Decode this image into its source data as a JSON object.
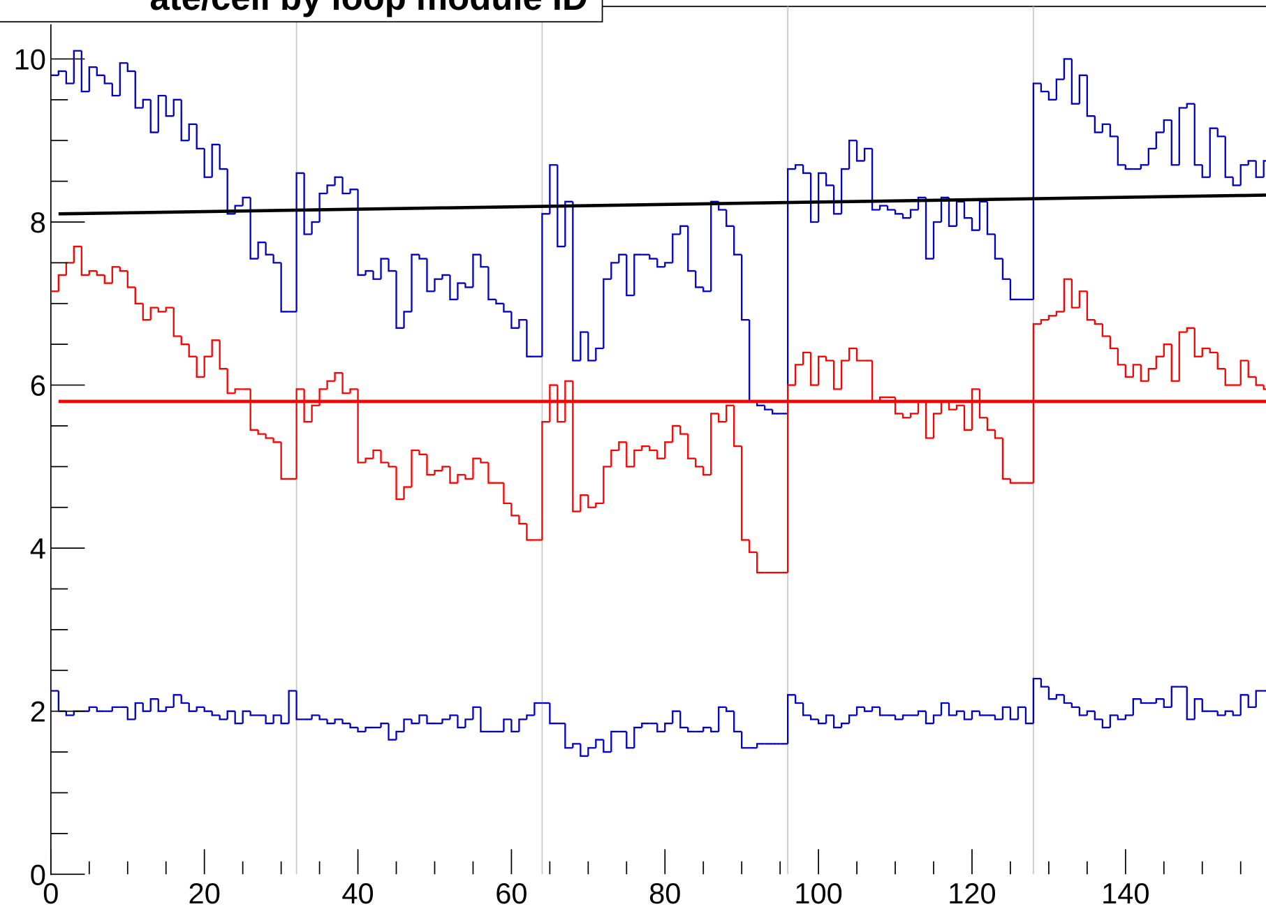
{
  "chart_data": {
    "type": "histogram",
    "title": "ate/cell by loop module ID",
    "xlim": [
      0,
      158.3
    ],
    "ylim": [
      0,
      10.2
    ],
    "xticks": [
      0,
      20,
      40,
      60,
      80,
      100,
      120,
      140
    ],
    "yticks": [
      0,
      2,
      4,
      6,
      8,
      10
    ],
    "xminorticks": [
      5,
      10,
      15,
      25,
      30,
      35,
      45,
      50,
      55,
      65,
      70,
      75,
      85,
      90,
      95,
      105,
      110,
      115,
      125,
      130,
      135,
      145,
      150,
      155
    ],
    "yminorticks": [
      0.5,
      1,
      1.5,
      2.5,
      3,
      3.5,
      4.5,
      5,
      5.5,
      6.5,
      7,
      7.5,
      8.5,
      9,
      9.5
    ],
    "vlines": [
      32,
      64,
      96,
      128
    ],
    "bins": [
      0,
      1,
      2,
      3,
      4,
      5,
      6,
      7,
      8,
      9,
      10,
      11,
      12,
      13,
      14,
      15,
      16,
      17,
      18,
      19,
      20,
      21,
      22,
      23,
      24,
      25,
      26,
      27,
      28,
      29,
      30,
      31,
      32,
      33,
      34,
      35,
      36,
      37,
      38,
      39,
      40,
      41,
      42,
      43,
      44,
      45,
      46,
      47,
      48,
      49,
      50,
      51,
      52,
      53,
      54,
      55,
      56,
      57,
      58,
      59,
      60,
      61,
      62,
      63,
      64,
      65,
      66,
      67,
      68,
      69,
      70,
      71,
      72,
      73,
      74,
      75,
      76,
      77,
      78,
      79,
      80,
      81,
      82,
      83,
      84,
      85,
      86,
      87,
      88,
      89,
      90,
      91,
      92,
      93,
      94,
      95,
      96,
      97,
      98,
      99,
      100,
      101,
      102,
      103,
      104,
      105,
      106,
      107,
      108,
      109,
      110,
      111,
      112,
      113,
      114,
      115,
      116,
      117,
      118,
      119,
      120,
      121,
      122,
      123,
      124,
      125,
      126,
      127,
      128,
      129,
      130,
      131,
      132,
      133,
      134,
      135,
      136,
      137,
      138,
      139,
      140,
      141,
      142,
      143,
      144,
      145,
      146,
      147,
      148,
      149,
      150,
      151,
      152,
      153,
      154,
      155,
      156,
      157,
      158,
      159,
      160
    ],
    "series": [
      {
        "color": "#0000c8",
        "values": [
          9.8,
          9.85,
          9.7,
          10.1,
          9.6,
          9.9,
          9.8,
          9.7,
          9.55,
          9.95,
          9.85,
          9.4,
          9.5,
          9.1,
          9.55,
          9.3,
          9.5,
          9.0,
          9.2,
          8.9,
          8.55,
          8.95,
          8.65,
          8.1,
          8.2,
          8.3,
          7.55,
          7.75,
          7.6,
          7.5,
          6.9,
          6.9,
          8.6,
          7.85,
          8.0,
          8.35,
          8.45,
          8.55,
          8.35,
          8.4,
          7.35,
          7.4,
          7.3,
          7.55,
          7.4,
          6.7,
          6.9,
          7.6,
          7.55,
          7.15,
          7.3,
          7.35,
          7.05,
          7.25,
          7.2,
          7.6,
          7.45,
          7.05,
          7.0,
          6.9,
          6.7,
          6.8,
          6.35,
          6.35,
          8.1,
          8.7,
          7.7,
          8.25,
          6.3,
          6.65,
          6.3,
          6.45,
          7.3,
          7.5,
          7.6,
          7.1,
          7.6,
          7.6,
          7.55,
          7.45,
          7.5,
          7.85,
          7.95,
          7.4,
          7.2,
          7.15,
          8.25,
          8.15,
          7.95,
          7.6,
          6.8,
          5.8,
          5.75,
          5.7,
          5.65,
          5.65,
          8.65,
          8.7,
          8.6,
          8.0,
          8.6,
          8.45,
          8.1,
          8.65,
          9.0,
          8.75,
          8.9,
          8.15,
          8.2,
          8.15,
          8.1,
          8.05,
          8.15,
          8.3,
          7.55,
          8.0,
          8.3,
          7.95,
          8.25,
          8.05,
          7.9,
          8.25,
          7.85,
          7.55,
          7.3,
          7.05,
          7.05,
          7.05,
          9.7,
          9.6,
          9.5,
          9.75,
          10.0,
          9.45,
          9.8,
          9.3,
          9.1,
          9.2,
          9.05,
          8.7,
          8.65,
          8.65,
          8.7,
          8.9,
          9.1,
          9.25,
          8.7,
          9.4,
          9.45,
          8.7,
          8.55,
          9.15,
          9.05,
          8.55,
          8.45,
          8.7,
          8.75,
          8.55,
          8.75,
          7.95
        ]
      },
      {
        "color": "#ff0000",
        "values": [
          7.15,
          7.35,
          7.5,
          7.7,
          7.35,
          7.4,
          7.35,
          7.25,
          7.45,
          7.4,
          7.2,
          7.0,
          6.8,
          6.95,
          6.9,
          6.95,
          6.6,
          6.5,
          6.35,
          6.1,
          6.35,
          6.55,
          6.2,
          5.9,
          5.95,
          5.95,
          5.45,
          5.4,
          5.35,
          5.3,
          4.85,
          4.85,
          5.95,
          5.55,
          5.75,
          5.95,
          6.05,
          6.15,
          5.9,
          5.95,
          5.05,
          5.1,
          5.2,
          5.05,
          5.0,
          4.6,
          4.75,
          5.2,
          5.15,
          4.9,
          4.95,
          5.0,
          4.8,
          4.9,
          4.85,
          5.1,
          5.05,
          4.8,
          4.8,
          4.55,
          4.4,
          4.3,
          4.1,
          4.1,
          5.55,
          6.0,
          5.55,
          6.05,
          4.45,
          4.65,
          4.5,
          4.55,
          5.0,
          5.2,
          5.3,
          5.0,
          5.2,
          5.25,
          5.2,
          5.1,
          5.3,
          5.5,
          5.4,
          5.1,
          5.0,
          4.9,
          5.65,
          5.55,
          5.75,
          5.25,
          4.1,
          3.95,
          3.7,
          3.7,
          3.7,
          3.7,
          6.0,
          6.25,
          6.4,
          6.0,
          6.35,
          6.3,
          5.95,
          6.3,
          6.45,
          6.3,
          6.3,
          5.8,
          5.85,
          5.85,
          5.65,
          5.6,
          5.65,
          5.8,
          5.35,
          5.65,
          5.8,
          5.7,
          5.75,
          5.45,
          5.95,
          5.6,
          5.45,
          5.35,
          4.85,
          4.8,
          4.8,
          4.8,
          6.75,
          6.8,
          6.85,
          6.9,
          7.3,
          6.95,
          7.15,
          6.8,
          6.75,
          6.6,
          6.45,
          6.25,
          6.1,
          6.25,
          6.05,
          6.2,
          6.35,
          6.5,
          6.05,
          6.65,
          6.7,
          6.35,
          6.45,
          6.4,
          6.2,
          6.0,
          6.0,
          6.3,
          6.1,
          6.0,
          5.95,
          5.45
        ]
      },
      {
        "color": "#0000c8",
        "values": [
          2.25,
          2.0,
          1.95,
          2.0,
          2.0,
          2.05,
          2.0,
          2.0,
          2.05,
          2.05,
          1.9,
          2.1,
          2.0,
          2.15,
          2.0,
          2.05,
          2.2,
          2.1,
          2.0,
          2.05,
          2.0,
          1.95,
          1.9,
          2.0,
          1.85,
          2.0,
          1.95,
          1.95,
          1.85,
          1.95,
          1.85,
          2.25,
          1.9,
          1.9,
          1.95,
          1.9,
          1.85,
          1.9,
          1.85,
          1.8,
          1.75,
          1.8,
          1.8,
          1.85,
          1.65,
          1.75,
          1.9,
          1.85,
          1.95,
          1.85,
          1.85,
          1.9,
          1.95,
          1.8,
          1.9,
          2.05,
          1.75,
          1.75,
          1.75,
          1.9,
          1.75,
          1.9,
          1.95,
          2.1,
          2.1,
          1.85,
          1.85,
          1.55,
          1.6,
          1.45,
          1.55,
          1.65,
          1.5,
          1.75,
          1.75,
          1.55,
          1.8,
          1.85,
          1.85,
          1.75,
          1.85,
          2.0,
          1.8,
          1.75,
          1.75,
          1.8,
          1.75,
          2.05,
          2.0,
          1.75,
          1.55,
          1.55,
          1.6,
          1.6,
          1.6,
          1.6,
          2.2,
          2.1,
          1.95,
          1.9,
          1.85,
          1.95,
          1.8,
          1.85,
          1.95,
          2.05,
          2.0,
          2.05,
          1.95,
          1.95,
          1.9,
          1.95,
          1.95,
          2.0,
          1.85,
          1.95,
          2.1,
          1.95,
          2.0,
          1.9,
          2.0,
          1.95,
          1.95,
          1.9,
          2.05,
          1.9,
          2.05,
          1.85,
          2.4,
          2.3,
          2.15,
          2.2,
          2.1,
          2.05,
          1.95,
          2.0,
          1.9,
          1.8,
          1.95,
          1.9,
          1.95,
          2.15,
          2.1,
          2.1,
          2.15,
          2.05,
          2.3,
          2.3,
          1.9,
          2.15,
          2.0,
          2.0,
          1.95,
          2.0,
          1.95,
          2.2,
          2.05,
          2.25,
          2.25,
          2.05
        ]
      }
    ],
    "fits": [
      {
        "color": "#000000",
        "x": [
          1,
          158.3
        ],
        "values": [
          8.1,
          8.33
        ]
      },
      {
        "color": "#ff0000",
        "x": [
          1,
          158.3
        ],
        "values": [
          5.8,
          5.8
        ]
      }
    ]
  }
}
